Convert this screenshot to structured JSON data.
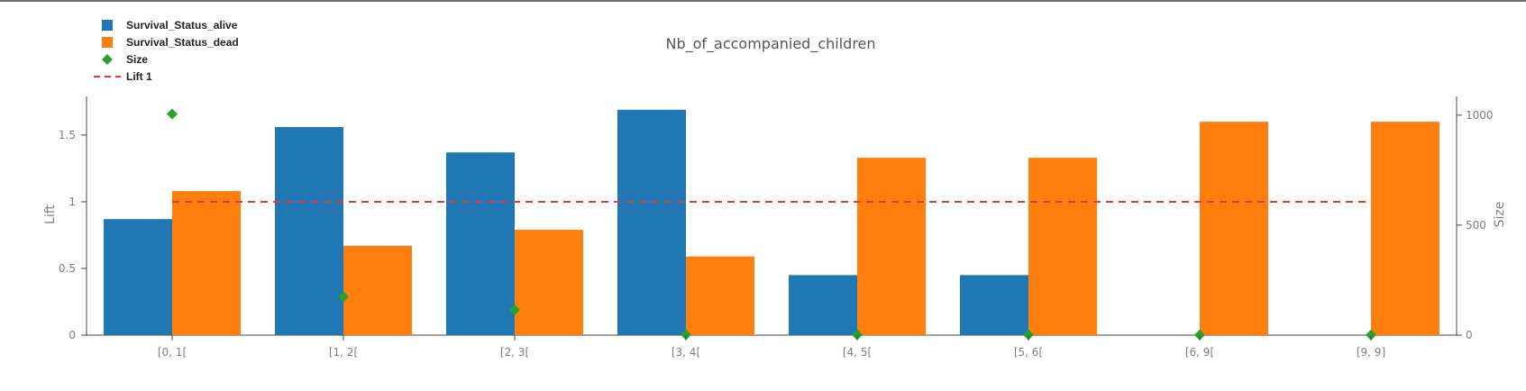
{
  "chart_data": {
    "type": "bar",
    "title": "Nb_of_accompanied_children",
    "categories": [
      "[0, 1[",
      "[1, 2[",
      "[2, 3[",
      "[3, 4[",
      "[4, 5[",
      "[5, 6[",
      "[6, 9[",
      "[9, 9]"
    ],
    "series": [
      {
        "name": "Survival_Status_alive",
        "type": "bar",
        "axis": "left",
        "color": "#1f77b4",
        "values": [
          0.87,
          1.56,
          1.37,
          1.69,
          0.45,
          0.45,
          0,
          0
        ]
      },
      {
        "name": "Survival_Status_dead",
        "type": "bar",
        "axis": "left",
        "color": "#ff7f0e",
        "values": [
          1.08,
          0.67,
          0.79,
          0.59,
          1.33,
          1.33,
          1.6,
          1.6
        ]
      },
      {
        "name": "Size",
        "type": "scatter",
        "axis": "right",
        "marker": "diamond",
        "color": "#2ca02c",
        "values": [
          1005,
          175,
          115,
          2,
          2,
          2,
          1,
          1
        ]
      },
      {
        "name": "Lift 1",
        "type": "line",
        "axis": "left",
        "dash": "dashed",
        "color": "#e03a3a",
        "values": [
          1,
          1,
          1,
          1,
          1,
          1,
          1,
          1
        ]
      }
    ],
    "ylabel": "Lift",
    "y2label": "Size",
    "ylim": [
      0,
      1.79
    ],
    "y2lim": [
      0,
      1085
    ],
    "yticks": [
      0,
      0.5,
      1,
      1.5
    ],
    "ytick_labels": [
      "0",
      "0.5",
      "1",
      "1.5"
    ],
    "y2ticks": [
      0,
      500,
      1000
    ],
    "y2tick_labels": [
      "0",
      "500",
      "1000"
    ],
    "grid": false,
    "legend_position": "top-left"
  }
}
